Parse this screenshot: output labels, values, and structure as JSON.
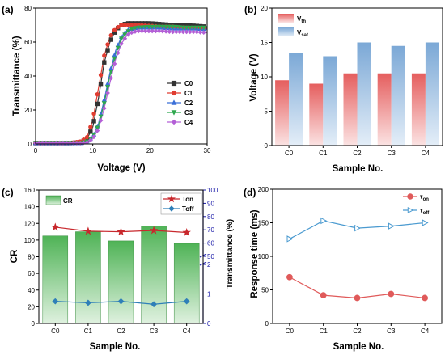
{
  "chart_data": [
    {
      "panel": "(a)",
      "type": "line",
      "xlabel": "Voltage (V)",
      "ylabel": "Transmittance (%)",
      "xlim": [
        0,
        30
      ],
      "ylim": [
        0,
        80
      ],
      "xticks": [
        "0",
        "10",
        "20",
        "30"
      ],
      "yticks": [
        "0",
        "20",
        "40",
        "60",
        "80"
      ],
      "legend_position": "right",
      "series": [
        {
          "name": "C0",
          "color": "#333333",
          "marker": "square",
          "x": [
            0,
            2,
            4,
            6,
            8,
            9,
            10,
            11,
            12,
            13,
            14,
            15,
            16,
            17,
            18,
            20,
            22,
            24,
            26,
            28,
            30
          ],
          "y": [
            0.5,
            0.5,
            0.5,
            0.5,
            1,
            3,
            10,
            27,
            48,
            60,
            67,
            70,
            71,
            71,
            71,
            71,
            70.5,
            70,
            70,
            69.5,
            69
          ]
        },
        {
          "name": "C1",
          "color": "#e03c31",
          "marker": "circle",
          "x": [
            0,
            2,
            4,
            6,
            8,
            9,
            10,
            11,
            12,
            13,
            14,
            15,
            16,
            17,
            18,
            20,
            22,
            24,
            26,
            28,
            30
          ],
          "y": [
            0.5,
            0.5,
            0.5,
            0.5,
            1.5,
            4,
            14,
            33,
            52,
            63,
            68,
            70,
            70,
            70,
            70,
            69.5,
            69,
            69,
            68.5,
            68,
            68
          ]
        },
        {
          "name": "C2",
          "color": "#3a6fd8",
          "marker": "triangle",
          "x": [
            0,
            2,
            4,
            6,
            8,
            9,
            10,
            11,
            12,
            13,
            14,
            15,
            16,
            17,
            18,
            20,
            22,
            24,
            26,
            28,
            30
          ],
          "y": [
            0.5,
            0.5,
            0.5,
            0.5,
            0.5,
            1.5,
            4,
            12,
            26,
            42,
            55,
            63,
            67,
            68,
            68.5,
            68.5,
            68.5,
            68,
            68,
            68,
            67.5
          ]
        },
        {
          "name": "C3",
          "color": "#2fa84f",
          "marker": "triangle-down",
          "x": [
            0,
            2,
            4,
            6,
            8,
            9,
            10,
            11,
            12,
            13,
            14,
            15,
            16,
            17,
            18,
            20,
            22,
            24,
            26,
            28,
            30
          ],
          "y": [
            0.5,
            0.5,
            0.5,
            0.5,
            0.5,
            1.5,
            4,
            11,
            24,
            40,
            53,
            62,
            66,
            68,
            68.5,
            69,
            69,
            69,
            68.5,
            68.5,
            68.5
          ]
        },
        {
          "name": "C4",
          "color": "#b35fd6",
          "marker": "diamond",
          "x": [
            0,
            2,
            4,
            6,
            8,
            9,
            10,
            11,
            12,
            13,
            14,
            15,
            16,
            17,
            18,
            20,
            22,
            24,
            26,
            28,
            30
          ],
          "y": [
            0.5,
            0.5,
            0.5,
            0.5,
            0.5,
            1,
            3,
            9,
            21,
            36,
            50,
            59,
            64,
            66,
            66.5,
            66.5,
            66.5,
            66,
            66,
            66,
            65.5
          ]
        }
      ]
    },
    {
      "panel": "(b)",
      "type": "bar",
      "xlabel": "Sample No.",
      "ylabel": "Voltage (V)",
      "ylim": [
        0,
        20
      ],
      "yticks": [
        "0",
        "5",
        "10",
        "15",
        "20"
      ],
      "categories": [
        "C0",
        "C1",
        "C2",
        "C3",
        "C4"
      ],
      "legend_position": "top-left",
      "series": [
        {
          "name": "V",
          "sub": "th",
          "color": "#e56a6a",
          "values": [
            9.5,
            9.0,
            10.5,
            10.5,
            10.5
          ]
        },
        {
          "name": "V",
          "sub": "sat",
          "color": "#86b2dc",
          "values": [
            13.5,
            13.0,
            15.0,
            14.5,
            15.0
          ]
        }
      ]
    },
    {
      "panel": "(c)",
      "type": "bar",
      "xlabel": "Sample No.",
      "ylabel": "CR",
      "y2label": "Transmittance (%)",
      "ylim": [
        0,
        160
      ],
      "yticks": [
        "0",
        "20",
        "40",
        "60",
        "80",
        "100",
        "120",
        "140",
        "160"
      ],
      "y2ticks_upper": [
        "50",
        "60",
        "70",
        "80",
        "90",
        "100"
      ],
      "y2ticks_lower": [
        "0",
        "1",
        "2"
      ],
      "categories": [
        "C0",
        "C1",
        "C2",
        "C3",
        "C4"
      ],
      "bar_series": {
        "name": "CR",
        "color": "#58b85e",
        "values": [
          105,
          110,
          99,
          117,
          96
        ]
      },
      "line_series": [
        {
          "name": "Ton",
          "color": "#c8282d",
          "marker": "star",
          "axis": "right-upper",
          "values": [
            72,
            69,
            68.5,
            69.5,
            68
          ]
        },
        {
          "name": "Toff",
          "color": "#2f7fb8",
          "marker": "diamond",
          "axis": "right-lower",
          "values": [
            0.75,
            0.7,
            0.75,
            0.65,
            0.75
          ]
        }
      ],
      "legend_position": "top"
    },
    {
      "panel": "(d)",
      "type": "line",
      "xlabel": "Sample No.",
      "ylabel": "Response time (ms)",
      "ylim": [
        0,
        200
      ],
      "yticks": [
        "0",
        "50",
        "100",
        "150",
        "200"
      ],
      "categories": [
        "C0",
        "C1",
        "C2",
        "C3",
        "C4"
      ],
      "legend_position": "top-right",
      "series": [
        {
          "name": "τ",
          "sub": "on",
          "color": "#e05a5a",
          "marker": "circle",
          "values": [
            69,
            42,
            38,
            44,
            38
          ]
        },
        {
          "name": "τ",
          "sub": "off",
          "color": "#4a9ad0",
          "marker": "triangle-right",
          "values": [
            126,
            153,
            142,
            145,
            150
          ]
        }
      ]
    }
  ]
}
